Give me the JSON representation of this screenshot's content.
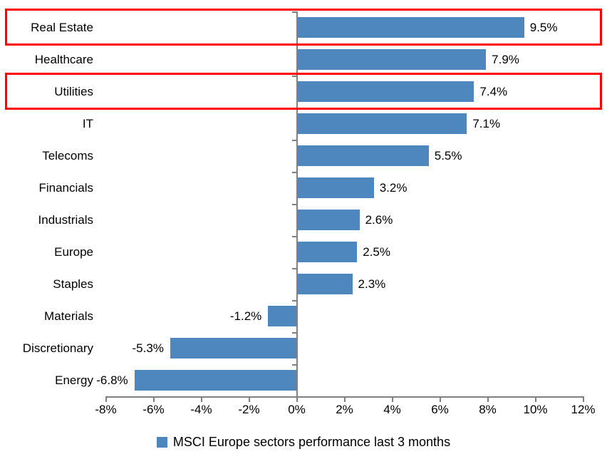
{
  "chart_data": {
    "type": "bar",
    "orientation": "horizontal",
    "title": "",
    "legend": "MSCI Europe sectors performance last 3 months",
    "legend_position": "bottom",
    "grid": false,
    "categories": [
      "Real Estate",
      "Healthcare",
      "Utilities",
      "IT",
      "Telecoms",
      "Financials",
      "Industrials",
      "Europe",
      "Staples",
      "Materials",
      "Discretionary",
      "Energy"
    ],
    "values": [
      9.5,
      7.9,
      7.4,
      7.1,
      5.5,
      3.2,
      2.6,
      2.5,
      2.3,
      -1.2,
      -5.3,
      -6.8
    ],
    "data_labels": [
      "9.5%",
      "7.9%",
      "7.4%",
      "7.1%",
      "5.5%",
      "3.2%",
      "2.6%",
      "2.5%",
      "2.3%",
      "-1.2%",
      "-5.3%",
      "-6.8%"
    ],
    "xlim": [
      -8,
      12
    ],
    "x_tick_values": [
      -8,
      -6,
      -4,
      -2,
      0,
      2,
      4,
      6,
      8,
      10,
      12
    ],
    "x_tick_labels": [
      "-8%",
      "-6%",
      "-4%",
      "-2%",
      "0%",
      "2%",
      "4%",
      "6%",
      "8%",
      "10%",
      "12%"
    ],
    "xlabel": "",
    "ylabel": "",
    "highlighted_categories": [
      "Real Estate",
      "Utilities"
    ],
    "colors": {
      "bar": "#4E86BE",
      "axis": "#808080",
      "highlight": "#FF0000",
      "text": "#000000",
      "background": "#FFFFFF"
    }
  }
}
